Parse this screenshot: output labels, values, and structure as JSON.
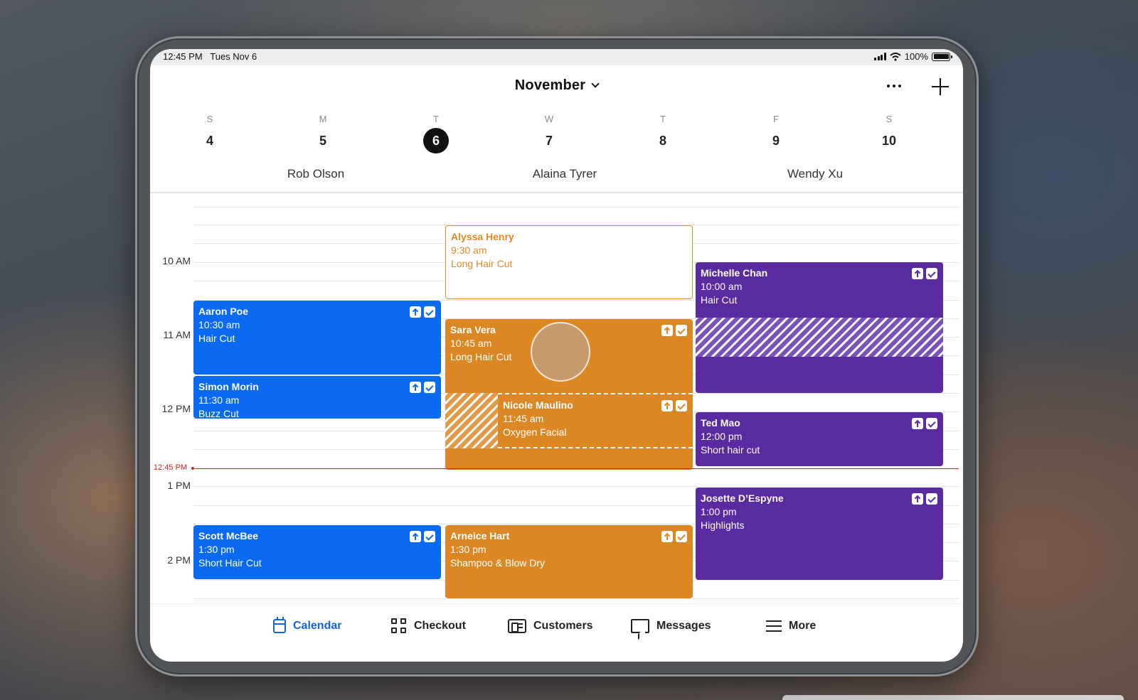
{
  "status_bar": {
    "time": "12:45 PM",
    "date": "Tues Nov 6",
    "battery": "100%"
  },
  "header": {
    "month": "November"
  },
  "days": [
    {
      "letter": "S",
      "number": "4"
    },
    {
      "letter": "M",
      "number": "5"
    },
    {
      "letter": "T",
      "number": "6"
    },
    {
      "letter": "W",
      "number": "7"
    },
    {
      "letter": "T",
      "number": "8"
    },
    {
      "letter": "F",
      "number": "9"
    },
    {
      "letter": "S",
      "number": "10"
    }
  ],
  "staff": [
    "Rob Olson",
    "Alaina Tyrer",
    "Wendy Xu"
  ],
  "hours": [
    "10 AM",
    "11 AM",
    "12 PM",
    "1 PM",
    "2 PM"
  ],
  "current_time_label": "12:45 PM",
  "appointments": {
    "aaron": {
      "name": "Aaron Poe",
      "time": "10:30 am",
      "service": "Hair Cut"
    },
    "simon": {
      "name": "Simon Morin",
      "time": "11:30 am",
      "service": "Buzz Cut"
    },
    "scott": {
      "name": "Scott McBee",
      "time": "1:30 pm",
      "service": "Short Hair Cut"
    },
    "alyssa": {
      "name": "Alyssa Henry",
      "time": "9:30 am",
      "service": "Long Hair Cut"
    },
    "sara": {
      "name": "Sara Vera",
      "time": "10:45 am",
      "service": "Long Hair Cut"
    },
    "nicole": {
      "name": "Nicole Maulino",
      "time": "11:45 am",
      "service": "Oxygen Facial"
    },
    "arneice": {
      "name": "Arneice Hart",
      "time": "1:30 pm",
      "service": "Shampoo & Blow Dry"
    },
    "michelle": {
      "name": "Michelle Chan",
      "time": "10:00 am",
      "service": "Hair Cut"
    },
    "ted": {
      "name": "Ted Mao",
      "time": "12:00 pm",
      "service": "Short hair cut"
    },
    "josette": {
      "name": "Josette D’Espyne",
      "time": "1:00 pm",
      "service": "Highlights"
    }
  },
  "colors": {
    "blue": "#0a6af2",
    "orange": "#db8724",
    "purple": "#5a2aa0",
    "now": "#e02020",
    "active_tab": "#1563d8"
  },
  "tabs": [
    {
      "label": "Calendar",
      "icon": "calendar-icon",
      "active": true
    },
    {
      "label": "Checkout",
      "icon": "grid-icon"
    },
    {
      "label": "Customers",
      "icon": "customer-card-icon"
    },
    {
      "label": "Messages",
      "icon": "message-icon"
    },
    {
      "label": "More",
      "icon": "menu-icon"
    }
  ]
}
